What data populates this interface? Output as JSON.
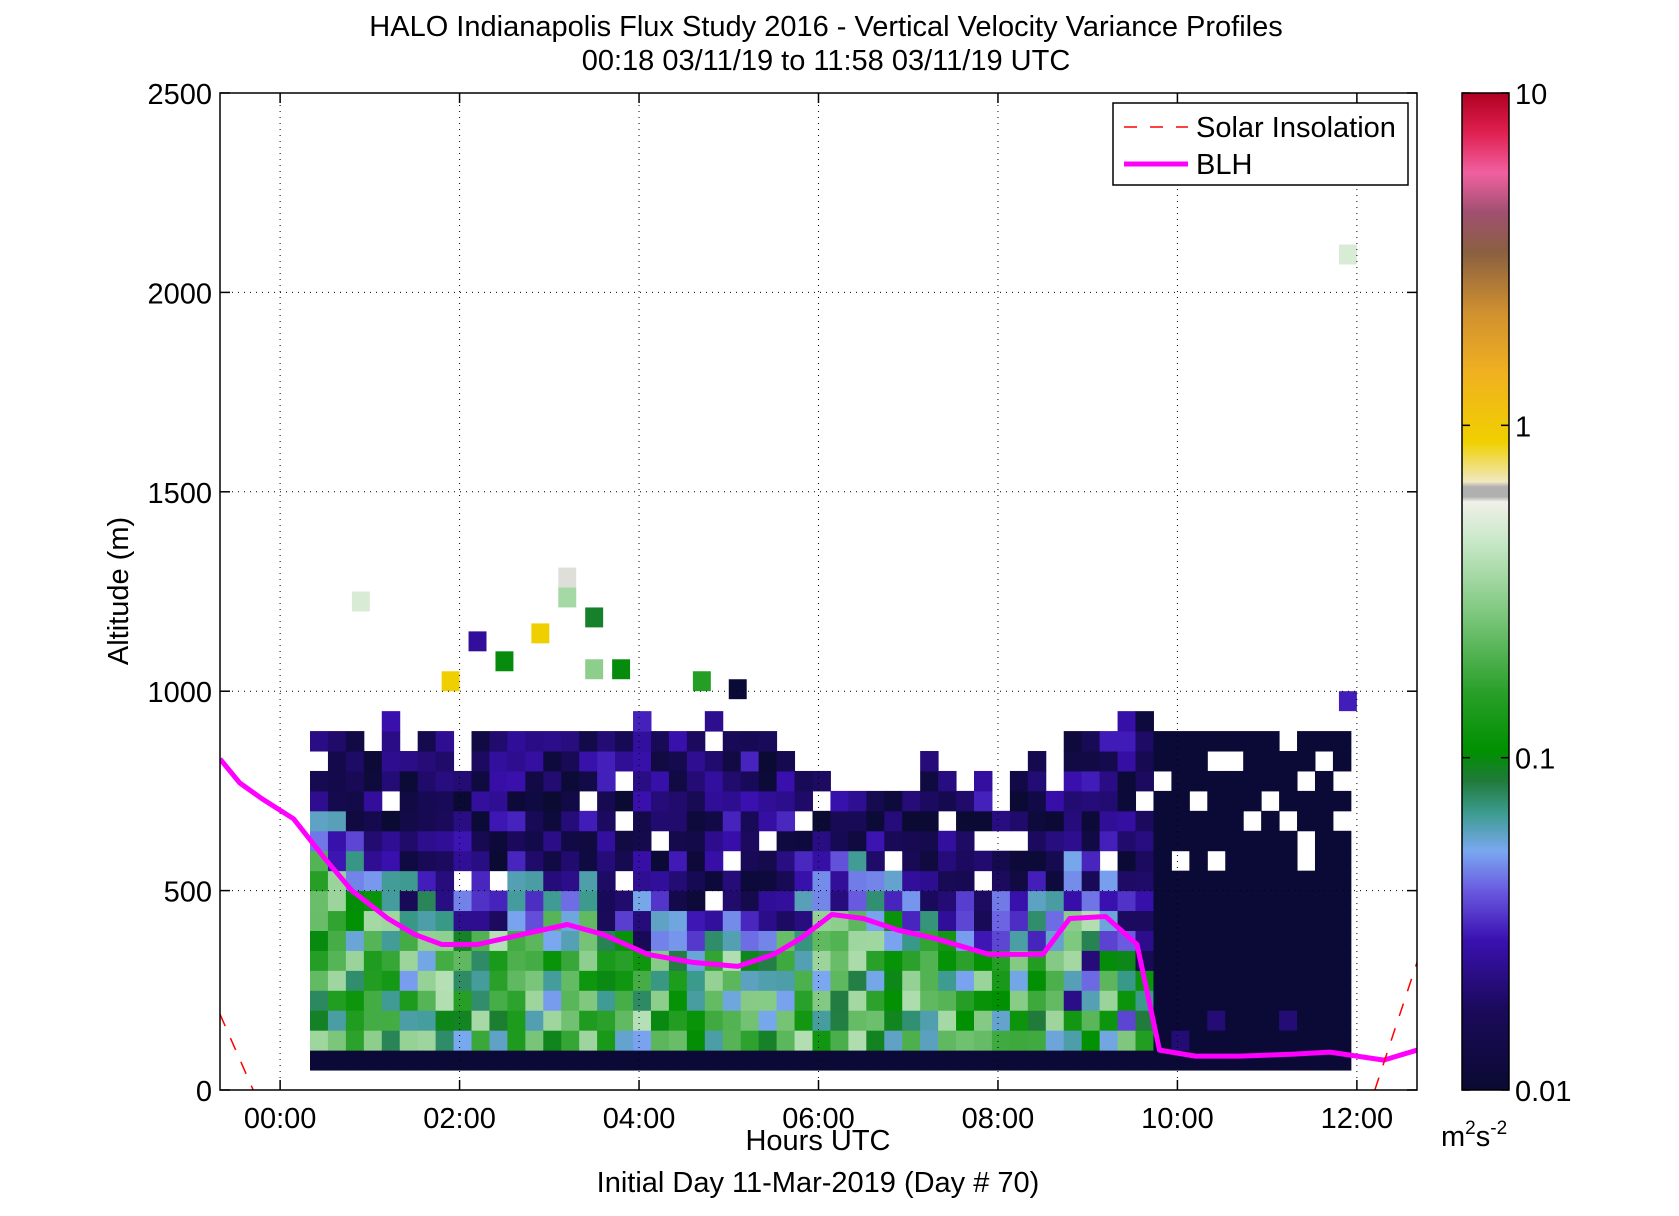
{
  "chart_data": {
    "type": "heatmap",
    "title": "HALO Indianapolis Flux Study 2016 - Vertical Velocity Variance Profiles",
    "subtitle": "00:18 03/11/19 to 11:58 03/11/19  UTC",
    "xlabel": "Hours UTC",
    "xlabel2": "Initial Day 11-Mar-2019 (Day # 70)",
    "ylabel": "Altitude (m)",
    "xlim": [
      -0.67,
      12.67
    ],
    "ylim": [
      0,
      2500
    ],
    "x_ticks": [
      0,
      2,
      4,
      6,
      8,
      10,
      12
    ],
    "x_tick_labels": [
      "00:00",
      "02:00",
      "04:00",
      "06:00",
      "08:00",
      "10:00",
      "12:00"
    ],
    "y_ticks": [
      0,
      500,
      1000,
      1500,
      2000,
      2500
    ],
    "y_tick_labels": [
      "0",
      "500",
      "1000",
      "1500",
      "2000",
      "2500"
    ],
    "grid": true,
    "legend_position": "top-right",
    "legend": [
      {
        "name": "Solar Insolation",
        "color": "#ff0000",
        "style": "dashed"
      },
      {
        "name": "BLH",
        "color": "#ff00ff",
        "style": "solid"
      }
    ],
    "colorbar": {
      "scale": "log",
      "range": [
        0.01,
        10
      ],
      "tick_values": [
        0.01,
        0.1,
        1,
        10
      ],
      "tick_labels": [
        "0.01",
        "0.1",
        "1",
        "10"
      ],
      "units_label": "m",
      "units_exp1": "2",
      "units_mid": "s",
      "units_exp2": "-2"
    },
    "bin_time_step_h": 0.2,
    "bin_alt_step_m": 50,
    "heatmap": {
      "time_start_h": 0.333,
      "alt_start_m": 50,
      "note_codes": "columns of variance class codes from lowest gate upward, 0=missing",
      "class_values": [
        0.011,
        0.016,
        0.022,
        0.03,
        0.045,
        0.07,
        0.1,
        0.15,
        0.22,
        0.3,
        0.5,
        0.7,
        1.0,
        0.35
      ],
      "columns": [
        "1,9,8,8,7,6,5,3,2,1,1,1,1",
        "1,8,7,7,7,6,6,4,2,1,1,1,1,0,0,0,0,0,0,0,0,0,0,0,0,0,0,0,0,0,0,0,0,0,0,0,0,0,0,0,0,0,0,0,0,0,0,0,0,0,0,0,0,0,0,0,0,0,0,0,0,0,0,0,0,0,0,0,0,0,0,0,0,0,0,0,0,0,0,0,0,0,0,0,0,0,0,0,0,0,0,0,0,0,0,0,0,0,0,0,0,0,0,0,0,0,0",
        "1,9,8,7,7,7,6,5,3,1,1,1,1,1",
        "1,9,8,7,6,6,5,4,3,2,1,1,1,1,1,0,0,0,0,0,0,0,0,0,0,0,0,0,0,0,0,0,0,0,0,0,0,0,0,0,0,0,0,0,0,0,0,0,0,0,0,0,0,0,0,0,0,0,0,0,0,0,0,0,0,0,0,0,0,0,0,0,0,0,0,0,0,0,0,0,0,0,0,0,0,0,0,0,0,0,0,0,0,0,0,0,0,0,0,0,0,0,0,0,0,0,0",
        "1,8,7,7,5,4,3,2,1,1,1,1,1,1,1,1,1"
      ]
    },
    "blh": {
      "x": [
        -0.67,
        -0.45,
        -0.2,
        0.15,
        0.5,
        0.8,
        1.2,
        1.5,
        1.8,
        2.2,
        2.7,
        3.2,
        3.6,
        4.1,
        4.6,
        5.1,
        5.5,
        5.8,
        6.15,
        6.5,
        6.9,
        7.3,
        7.6,
        7.9,
        8.2,
        8.5,
        8.8,
        9.2,
        9.55,
        9.8,
        10.2,
        10.7,
        11.3,
        11.7,
        12.3,
        12.67
      ],
      "y": [
        830,
        770,
        730,
        680,
        580,
        500,
        430,
        390,
        365,
        365,
        390,
        415,
        390,
        340,
        320,
        310,
        340,
        380,
        440,
        430,
        400,
        380,
        360,
        340,
        340,
        340,
        430,
        435,
        365,
        100,
        85,
        85,
        90,
        95,
        75,
        100
      ]
    },
    "solar": {
      "segments": [
        {
          "x": [
            -0.67,
            -0.3
          ],
          "y": [
            190,
            0
          ]
        },
        {
          "x": [
            12.2,
            12.67
          ],
          "y": [
            0,
            320
          ]
        }
      ]
    }
  }
}
